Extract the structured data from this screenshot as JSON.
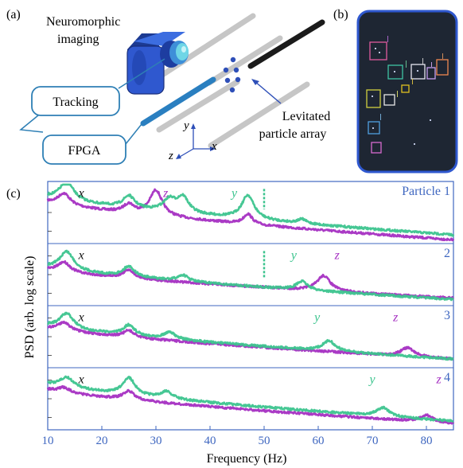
{
  "panel_labels": {
    "a": "(a)",
    "b": "(b)",
    "c": "(c)"
  },
  "schematic": {
    "camera_label_line1": "Neuromorphic",
    "camera_label_line2": "imaging",
    "tracking_box": "Tracking",
    "fpga_box": "FPGA",
    "array_label_line1": "Levitated",
    "array_label_line2": "particle array",
    "axis_y": "y",
    "axis_z": "z",
    "axis_x": "x"
  },
  "colors": {
    "green": "#3cc48e",
    "purple": "#a52fc2",
    "axis_blue": "#3f67c0",
    "camera_blue": "#2f58cf",
    "camera_dark": "#1c3a92",
    "box_stroke": "#2e7fb5",
    "dark_panel": "#1e2633"
  },
  "chart_data": {
    "type": "line",
    "xlabel": "Frequency (Hz)",
    "ylabel": "PSD (arb. log scale)",
    "x_ticks": [
      10,
      20,
      30,
      40,
      50,
      60,
      70,
      80
    ],
    "xlim": [
      10,
      85
    ],
    "y_scale": "log",
    "panels": [
      {
        "tag": "Particle 1",
        "peaks": {
          "green": [
            {
              "f": 13.5,
              "h": 0.55,
              "w": 1.6
            },
            {
              "f": 25,
              "h": 0.35,
              "w": 1.3
            },
            {
              "f": 32.5,
              "h": 0.35,
              "w": 1.4
            },
            {
              "f": 35,
              "h": 0.45,
              "w": 1.3
            },
            {
              "f": 47,
              "h": 0.7,
              "w": 1.4
            },
            {
              "f": 57,
              "h": 0.12,
              "w": 1.0
            }
          ],
          "purple": [
            {
              "f": 13,
              "h": 0.35,
              "w": 1.4
            },
            {
              "f": 25,
              "h": 0.25,
              "w": 1.2
            },
            {
              "f": 30,
              "h": 0.75,
              "w": 1.4
            },
            {
              "f": 47,
              "h": 0.3,
              "w": 1.0
            }
          ]
        },
        "base": {
          "green": [
            0.25,
            0.86
          ],
          "purple": [
            0.33,
            0.94
          ]
        },
        "labels": [
          {
            "t": "x",
            "f": 16.2,
            "c": "black"
          },
          {
            "t": "z",
            "f": 31.8,
            "c": "purple"
          },
          {
            "t": "y",
            "f": 44.5,
            "c": "green"
          }
        ]
      },
      {
        "tag": "2",
        "peaks": {
          "green": [
            {
              "f": 13.5,
              "h": 0.55,
              "w": 1.6
            },
            {
              "f": 25,
              "h": 0.3,
              "w": 1.3
            },
            {
              "f": 35,
              "h": 0.18,
              "w": 1.2
            },
            {
              "f": 57,
              "h": 0.25,
              "w": 1.3
            }
          ],
          "purple": [
            {
              "f": 13,
              "h": 0.3,
              "w": 1.4
            },
            {
              "f": 25,
              "h": 0.25,
              "w": 1.2
            },
            {
              "f": 61,
              "h": 0.45,
              "w": 1.5
            }
          ]
        },
        "base": {
          "green": [
            0.38,
            0.9
          ],
          "purple": [
            0.42,
            0.88
          ]
        },
        "labels": [
          {
            "t": "x",
            "f": 16.2,
            "c": "black"
          },
          {
            "t": "y",
            "f": 55.5,
            "c": "green"
          },
          {
            "t": "z",
            "f": 63.5,
            "c": "purple"
          }
        ]
      },
      {
        "tag": "3",
        "peaks": {
          "green": [
            {
              "f": 13.5,
              "h": 0.45,
              "w": 1.6
            },
            {
              "f": 25,
              "h": 0.3,
              "w": 1.3
            },
            {
              "f": 32.5,
              "h": 0.2,
              "w": 1.3
            },
            {
              "f": 62,
              "h": 0.3,
              "w": 1.4
            }
          ],
          "purple": [
            {
              "f": 13,
              "h": 0.25,
              "w": 1.4
            },
            {
              "f": 25,
              "h": 0.2,
              "w": 1.2
            },
            {
              "f": 76.5,
              "h": 0.25,
              "w": 1.5
            }
          ]
        },
        "base": {
          "green": [
            0.32,
            0.86
          ],
          "purple": [
            0.36,
            0.86
          ]
        },
        "labels": [
          {
            "t": "x",
            "f": 16.2,
            "c": "black"
          },
          {
            "t": "y",
            "f": 59.8,
            "c": "green"
          },
          {
            "t": "z",
            "f": 74.3,
            "c": "purple"
          }
        ]
      },
      {
        "tag": "4",
        "peaks": {
          "green": [
            {
              "f": 13.5,
              "h": 0.3,
              "w": 1.6
            },
            {
              "f": 25,
              "h": 0.5,
              "w": 1.4
            },
            {
              "f": 32,
              "h": 0.2,
              "w": 1.3
            },
            {
              "f": 72,
              "h": 0.25,
              "w": 1.4
            }
          ],
          "purple": [
            {
              "f": 13,
              "h": 0.15,
              "w": 1.4
            },
            {
              "f": 25,
              "h": 0.25,
              "w": 1.3
            },
            {
              "f": 80,
              "h": 0.2,
              "w": 1.4
            }
          ]
        },
        "base": {
          "green": [
            0.26,
            0.86
          ],
          "purple": [
            0.35,
            0.9
          ]
        },
        "labels": [
          {
            "t": "x",
            "f": 16.2,
            "c": "black"
          },
          {
            "t": "y",
            "f": 70.0,
            "c": "green"
          },
          {
            "t": "z",
            "f": 82.3,
            "c": "purple"
          }
        ]
      }
    ]
  }
}
